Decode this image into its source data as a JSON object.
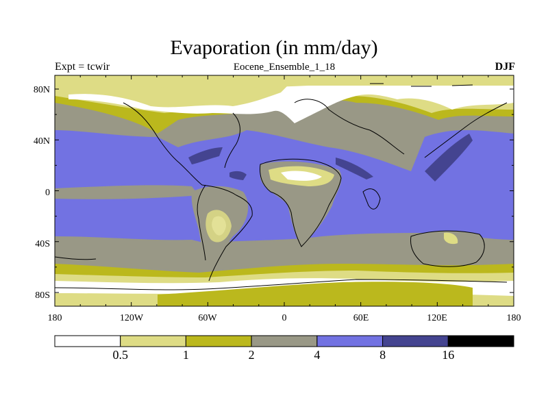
{
  "title": "Evaporation (in mm/day)",
  "left_label": "Expt = tcwir",
  "center_label": "Eocene_Ensemble_1_18",
  "right_label": "DJF",
  "lat_labels": [
    "80N",
    "40N",
    "0",
    "40S",
    "80S"
  ],
  "lon_labels": [
    "180",
    "120W",
    "60W",
    "0",
    "60E",
    "120E",
    "180"
  ],
  "colorbar": {
    "levels": [
      "0.5",
      "1",
      "2",
      "4",
      "8",
      "16"
    ],
    "colors": [
      "#ffffff",
      "#dedc85",
      "#bbb81d",
      "#999886",
      "#7272e2",
      "#444490",
      "#000000"
    ]
  }
}
